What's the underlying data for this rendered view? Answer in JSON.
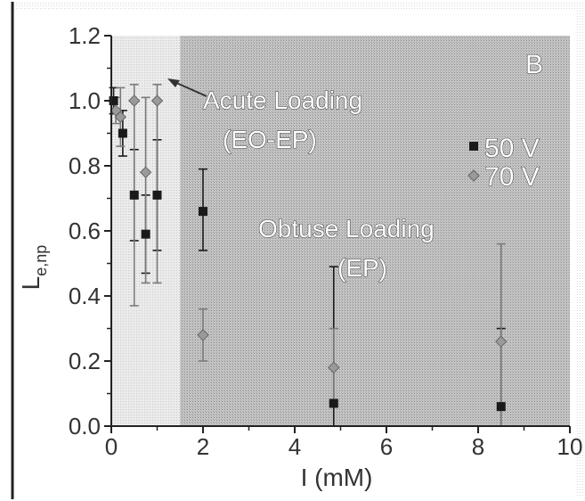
{
  "chart_data": {
    "type": "scatter",
    "panel_label": "B",
    "xlabel": "I (mM)",
    "ylabel_main": "L",
    "ylabel_sub": "e,np",
    "xlim": [
      0,
      10
    ],
    "ylim": [
      0,
      1.2
    ],
    "xticks": [
      0,
      2,
      4,
      6,
      8,
      10
    ],
    "yticks": [
      0.0,
      0.2,
      0.4,
      0.6,
      0.8,
      1.0,
      1.2
    ],
    "x_tick_labels": [
      "0",
      "2",
      "4",
      "6",
      "8",
      "10"
    ],
    "y_tick_labels": [
      "0.0",
      "0.2",
      "0.4",
      "0.6",
      "0.8",
      "1.0",
      "1.2"
    ],
    "region_boundary_x": 1.5,
    "regions": [
      {
        "name": "Acute Loading",
        "sub": "(EO-EP)",
        "x_range": [
          0,
          1.5
        ]
      },
      {
        "name": "Obtuse Loading",
        "sub": "(EP)",
        "x_range": [
          1.5,
          10
        ]
      }
    ],
    "series": [
      {
        "name": "50 V",
        "marker": "square",
        "color": "#1a1a1a",
        "points": [
          {
            "x": 0.05,
            "y": 1.0,
            "lo": 0.96,
            "hi": 1.04
          },
          {
            "x": 0.25,
            "y": 0.9,
            "lo": 0.83,
            "hi": 0.97
          },
          {
            "x": 0.5,
            "y": 0.71,
            "lo": 0.57,
            "hi": 0.85
          },
          {
            "x": 0.75,
            "y": 0.59,
            "lo": 0.47,
            "hi": 0.71
          },
          {
            "x": 1.0,
            "y": 0.71,
            "lo": 0.54,
            "hi": 0.88
          },
          {
            "x": 2.0,
            "y": 0.66,
            "lo": 0.54,
            "hi": 0.79
          },
          {
            "x": 4.85,
            "y": 0.07,
            "lo": 0.0,
            "hi": 0.49
          },
          {
            "x": 8.5,
            "y": 0.06,
            "lo": 0.0,
            "hi": 0.3
          }
        ]
      },
      {
        "name": "70 V",
        "marker": "diamond",
        "color": "#9a9a9a",
        "points": [
          {
            "x": 0.1,
            "y": 0.97,
            "lo": 0.93,
            "hi": 1.01
          },
          {
            "x": 0.2,
            "y": 0.95,
            "lo": 0.86,
            "hi": 1.04
          },
          {
            "x": 0.5,
            "y": 1.0,
            "lo": 0.37,
            "hi": 1.05
          },
          {
            "x": 0.75,
            "y": 0.78,
            "lo": 0.44,
            "hi": 1.01
          },
          {
            "x": 1.0,
            "y": 1.0,
            "lo": 0.44,
            "hi": 1.05
          },
          {
            "x": 2.0,
            "y": 0.28,
            "lo": 0.2,
            "hi": 0.36
          },
          {
            "x": 4.85,
            "y": 0.18,
            "lo": 0.07,
            "hi": 0.3
          },
          {
            "x": 8.5,
            "y": 0.26,
            "lo": 0.0,
            "hi": 0.56
          }
        ]
      }
    ],
    "colors": {
      "acute_region": "#e6e6e6",
      "obtuse_region": "#bcbcbc",
      "axis": "#222222"
    }
  }
}
